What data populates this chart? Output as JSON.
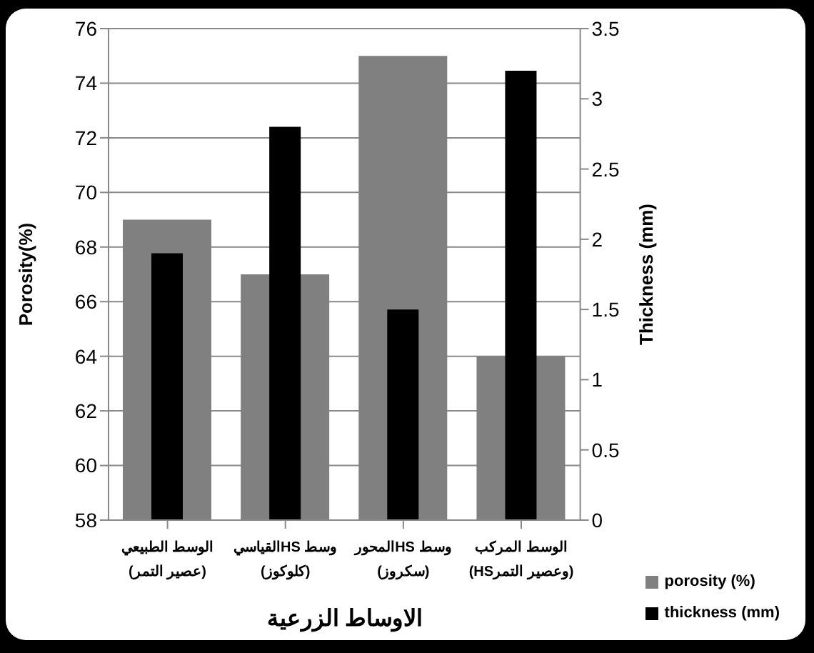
{
  "chart_data": {
    "type": "bar",
    "xlabel": "الاوساط الزرعية",
    "ylabel": "Porosity(%)",
    "y2label": "Thickness (mm)",
    "categories": [
      "الوسط الطبيعي\n(عصير التمر)",
      "وسط HSالقياسي\n(كلوكوز)",
      "وسط HSالمحور\n(سكروز)",
      "الوسط المركب\n(HSوعصير التمر)"
    ],
    "series": [
      {
        "name": "porosity (%)",
        "color": "#808080",
        "values": [
          69,
          67,
          75,
          64
        ]
      },
      {
        "name": "thickness (mm)",
        "color": "#000000",
        "values": [
          1.9,
          2.8,
          1.5,
          3.2
        ],
        "axis": "y2"
      }
    ],
    "ylim": [
      58,
      76
    ],
    "yticks": [
      58,
      60,
      62,
      64,
      66,
      68,
      70,
      72,
      74,
      76
    ],
    "y2lim": [
      0,
      3.5
    ],
    "y2ticks": [
      0,
      0.5,
      1,
      1.5,
      2,
      2.5,
      3,
      3.5
    ],
    "grid": "y",
    "legend": "bottom right"
  }
}
